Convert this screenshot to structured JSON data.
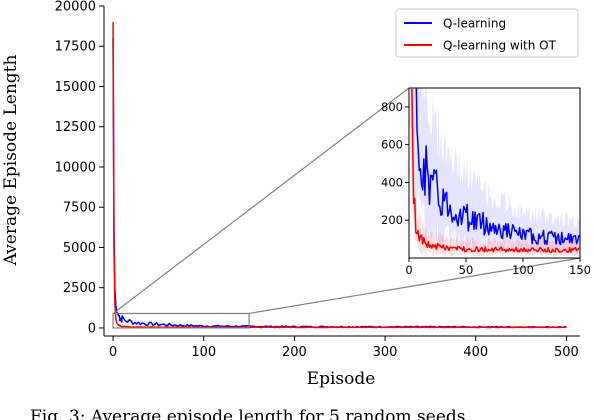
{
  "chart_data": {
    "type": "line",
    "xlabel": "Episode",
    "ylabel": "Average Episode Length",
    "xlim": [
      -10,
      515
    ],
    "ylim": [
      -500,
      20000
    ],
    "xticks": [
      0,
      100,
      200,
      300,
      400,
      500
    ],
    "yticks": [
      0,
      2500,
      5000,
      7500,
      10000,
      12500,
      15000,
      17500,
      20000
    ],
    "legend_position": "upper-right",
    "grid": false,
    "series": [
      {
        "name": "Q-learning",
        "color": "#0000ff",
        "x": [
          0,
          1,
          2,
          3,
          4,
          6,
          8,
          10,
          15,
          20,
          30,
          40,
          50,
          75,
          100,
          150,
          200,
          300,
          400,
          500
        ],
        "y": [
          18000,
          6000,
          2400,
          1400,
          1000,
          780,
          650,
          560,
          450,
          380,
          300,
          250,
          220,
          160,
          120,
          95,
          80,
          70,
          65,
          60
        ]
      },
      {
        "name": "Q-learning with OT",
        "color": "#ff0000",
        "x": [
          0,
          1,
          2,
          3,
          4,
          6,
          8,
          10,
          15,
          20,
          30,
          40,
          50,
          75,
          100,
          150,
          200,
          300,
          400,
          500
        ],
        "y": [
          19000,
          5000,
          1500,
          600,
          320,
          170,
          120,
          100,
          75,
          65,
          55,
          50,
          48,
          45,
          43,
          42,
          41,
          40,
          40,
          40
        ]
      }
    ],
    "inset": {
      "xlim": [
        0,
        150
      ],
      "ylim": [
        0,
        900
      ],
      "xticks": [
        0,
        50,
        100,
        150
      ],
      "yticks": [
        200,
        400,
        600,
        800
      ]
    }
  },
  "caption": "Fig. 3: Average episode length for 5 random seeds."
}
